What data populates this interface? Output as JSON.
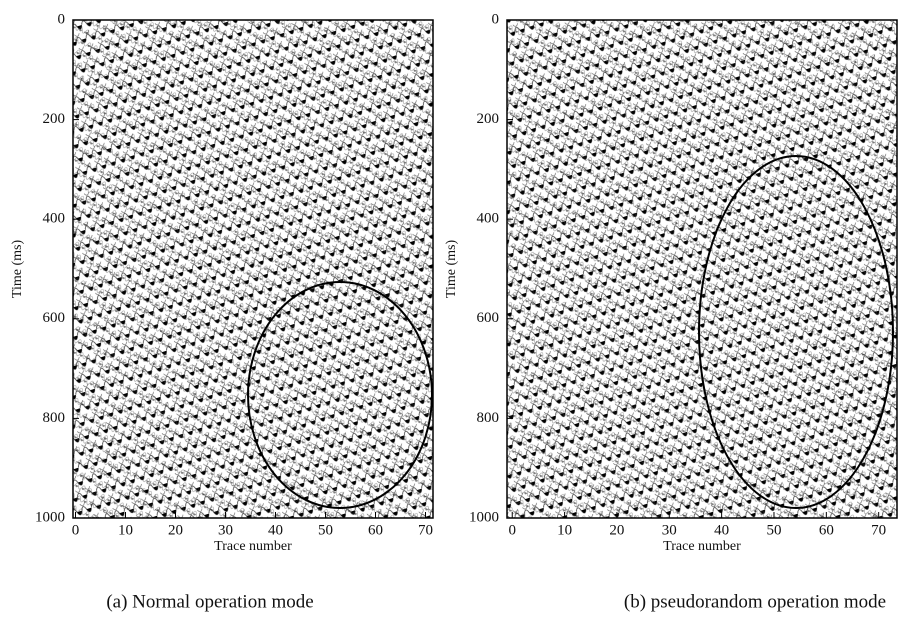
{
  "chart_data": [
    {
      "type": "wiggle",
      "caption": "(a) Normal operation mode",
      "x_label": "Trace number",
      "y_label": "Time (ms)",
      "xlim": [
        -0.5,
        71.5
      ],
      "xticks": [
        0,
        10,
        20,
        30,
        40,
        50,
        60,
        70
      ],
      "ylim": [
        0,
        1000
      ],
      "yticks": [
        0,
        200,
        400,
        600,
        800,
        1000
      ]
    },
    {
      "type": "wiggle",
      "caption": "(b) pseudorandom operation mode",
      "x_label": "Trace number",
      "y_label": "Time (ms)",
      "xlim": [
        -1,
        73.5
      ],
      "xticks": [
        0,
        10,
        20,
        30,
        40,
        50,
        60,
        70
      ],
      "ylim": [
        0,
        1000
      ],
      "yticks": [
        0,
        200,
        400,
        600,
        800,
        1000
      ]
    }
  ]
}
